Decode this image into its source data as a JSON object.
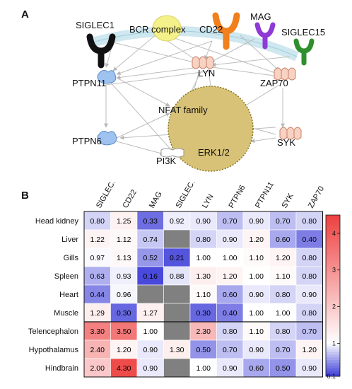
{
  "figure": {
    "panel_a_label": "A",
    "panel_b_label": "B"
  },
  "network": {
    "nodes": {
      "siglec1": "SIGLEC1",
      "bcr": "BCR complex",
      "cd22": "CD22",
      "mag": "MAG",
      "siglec15": "SIGLEC15",
      "lyn": "LYN",
      "ptpn11": "PTPN11",
      "zap70": "ZAP70",
      "nfat": "NFAT family",
      "ptpn6": "PTPN6",
      "erk": "ERK1/2",
      "syk": "SYK",
      "pi3k": "PI3K"
    },
    "colors": {
      "siglec1": "#111111",
      "cd22": "#f07f1c",
      "mag": "#8e3ad6",
      "siglec15": "#2f8f2f",
      "bcr": "#f4f08a",
      "phosphatase": "#9fc3f0",
      "kinase": "#f8d2c2",
      "complex": "#d8c277",
      "membrane": "#cfe7ef",
      "edge": "#bdbdbd"
    }
  },
  "chart_data": {
    "type": "heatmap",
    "columns": [
      "SIGLEC1",
      "CD22",
      "MAG",
      "SIGLEC15",
      "LYN",
      "PTPN6",
      "PTPN11",
      "SYK",
      "ZAP70"
    ],
    "rows": [
      "Head kidney",
      "Liver",
      "Gills",
      "Spleen",
      "Heart",
      "Muscle",
      "Telencephalon",
      "Hypothalamus",
      "Hindbrain"
    ],
    "values": [
      [
        0.8,
        1.25,
        0.33,
        0.92,
        0.9,
        0.7,
        0.9,
        0.7,
        0.8
      ],
      [
        1.22,
        1.12,
        0.74,
        null,
        0.8,
        0.9,
        1.2,
        0.6,
        0.4
      ],
      [
        0.97,
        1.13,
        0.52,
        0.21,
        1.0,
        1.0,
        1.1,
        1.2,
        0.8
      ],
      [
        0.63,
        0.93,
        0.16,
        0.88,
        1.3,
        1.2,
        1.0,
        1.1,
        0.8
      ],
      [
        0.44,
        0.96,
        null,
        null,
        1.1,
        0.6,
        0.9,
        0.8,
        0.9
      ],
      [
        1.29,
        0.3,
        1.27,
        null,
        0.3,
        0.4,
        1.0,
        1.0,
        0.8
      ],
      [
        3.3,
        3.5,
        1.0,
        null,
        2.3,
        0.8,
        1.1,
        0.8,
        0.7
      ],
      [
        2.4,
        1.2,
        0.9,
        1.3,
        0.5,
        0.7,
        0.9,
        0.7,
        1.2
      ],
      [
        2.0,
        4.3,
        0.9,
        null,
        1.0,
        0.9,
        0.6,
        0.5,
        0.9
      ]
    ],
    "labels": [
      [
        "0.80",
        "1.25",
        "0.33",
        "0.92",
        "0.90",
        "0.70",
        "0.90",
        "0.70",
        "0.80"
      ],
      [
        "1.22",
        "1.12",
        "0.74",
        "",
        "0.80",
        "0.90",
        "1.20",
        "0.60",
        "0.40"
      ],
      [
        "0.97",
        "1.13",
        "0.52",
        "0.21",
        "1.00",
        "1.00",
        "1.10",
        "1.20",
        "0.80"
      ],
      [
        "0.63",
        "0.93",
        "0.16",
        "0.88",
        "1.30",
        "1.20",
        "1.00",
        "1.10",
        "0.80"
      ],
      [
        "0.44",
        "0.96",
        "",
        "",
        "1.10",
        "0.60",
        "0.90",
        "0.80",
        "0.90"
      ],
      [
        "1.29",
        "0.30",
        "1.27",
        "",
        "0.30",
        "0.40",
        "1.00",
        "1.00",
        "0.80"
      ],
      [
        "3.30",
        "3.50",
        "1.00",
        "",
        "2.30",
        "0.80",
        "1.10",
        "0.80",
        "0.70"
      ],
      [
        "2.40",
        "1.20",
        "0.90",
        "1.30",
        "0.50",
        "0.70",
        "0.90",
        "0.70",
        "1.20"
      ],
      [
        "2.00",
        "4.30",
        "0.90",
        "",
        "1.00",
        "0.90",
        "0.60",
        "0.50",
        "0.90"
      ]
    ],
    "missing_color": "#808080",
    "colorscale": {
      "low_color": "#3c3cd8",
      "mid_color": "#ffffff",
      "high_color": "#ee4040",
      "min": 0.1,
      "mid": 1,
      "max": 4.5,
      "ticks": [
        {
          "value": 4,
          "label": "4"
        },
        {
          "value": 3,
          "label": "3"
        },
        {
          "value": 2,
          "label": "2"
        },
        {
          "value": 1,
          "label": "1"
        },
        {
          "value": 0.1,
          "label": "0.1"
        }
      ]
    }
  }
}
